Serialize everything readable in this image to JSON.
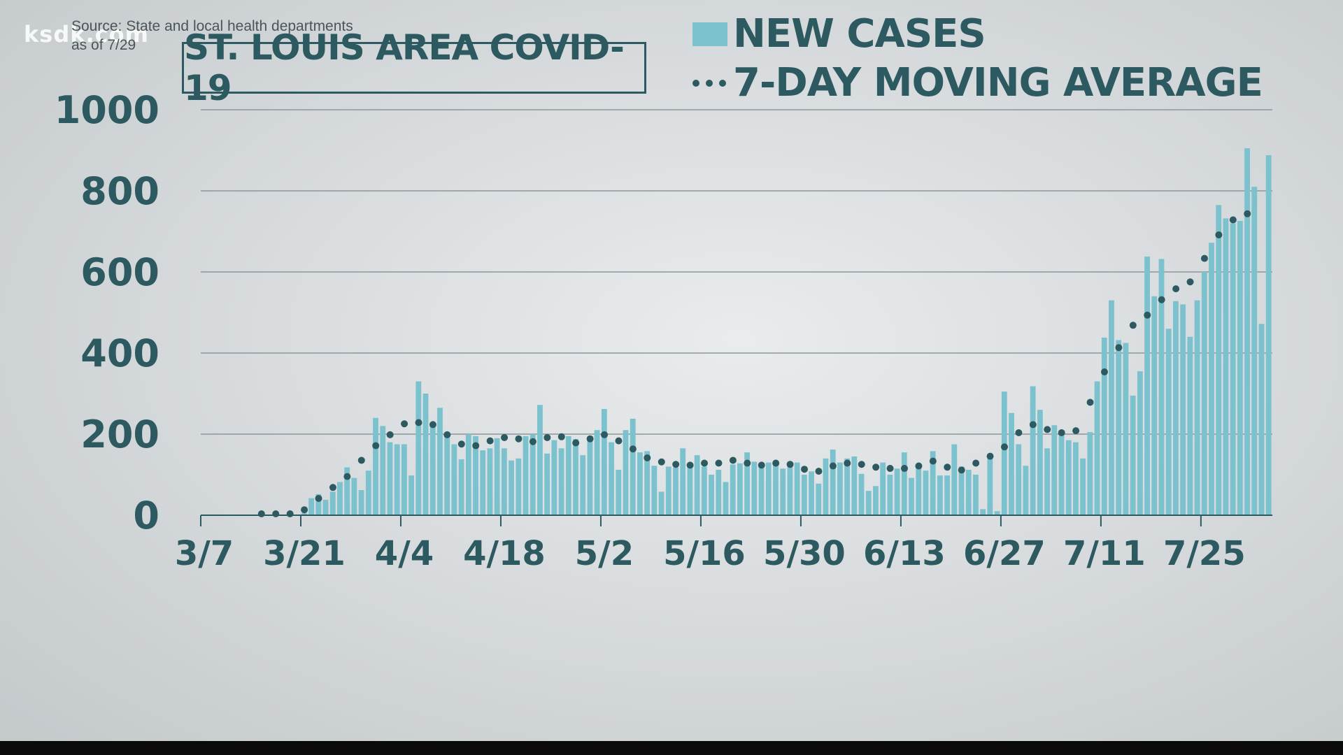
{
  "watermark": "ksdk.com",
  "source_line1": "Source: State and local health departments",
  "source_line2": "as of 7/29",
  "colors": {
    "bar": "#7cc2ce",
    "dot": "#2c5a60",
    "grid": "#8e9699",
    "text": "#2c5a60"
  },
  "chart_data": {
    "type": "bar",
    "title": "ST. LOUIS AREA COVID-19",
    "xlabel": "",
    "ylabel": "",
    "ylim": [
      0,
      1000
    ],
    "yticks": [
      0,
      200,
      400,
      600,
      800,
      1000
    ],
    "grid": true,
    "legend_placement": "top-right",
    "x_start": "3/7",
    "xticks": [
      "3/7",
      "3/21",
      "4/4",
      "4/18",
      "5/2",
      "5/16",
      "5/30",
      "6/13",
      "6/27",
      "7/11",
      "7/25"
    ],
    "series": [
      {
        "name": "NEW CASES",
        "type": "bar",
        "values": [
          0,
          0,
          0,
          0,
          0,
          0,
          0,
          0,
          0,
          0,
          0,
          0,
          0,
          0,
          5,
          42,
          52,
          38,
          58,
          82,
          118,
          92,
          62,
          110,
          240,
          220,
          180,
          175,
          175,
          98,
          330,
          300,
          225,
          265,
          205,
          175,
          138,
          200,
          195,
          160,
          165,
          190,
          165,
          135,
          140,
          195,
          200,
          272,
          152,
          185,
          165,
          195,
          188,
          148,
          190,
          210,
          262,
          180,
          112,
          210,
          238,
          155,
          158,
          122,
          58,
          120,
          118,
          165,
          125,
          148,
          120,
          100,
          112,
          82,
          125,
          128,
          155,
          132,
          120,
          130,
          128,
          115,
          132,
          130,
          100,
          108,
          78,
          140,
          162,
          130,
          140,
          145,
          102,
          60,
          72,
          130,
          100,
          115,
          155,
          92,
          118,
          110,
          158,
          98,
          98,
          175,
          120,
          112,
          100,
          15,
          148,
          10,
          305,
          252,
          175,
          122,
          318,
          260,
          165,
          222,
          198,
          185,
          180,
          140,
          205,
          330,
          438,
          530,
          432,
          425,
          295,
          355,
          638,
          540,
          632,
          460,
          528,
          520,
          440,
          530,
          600,
          672,
          765,
          732,
          720,
          726,
          905,
          810,
          472,
          888
        ]
      },
      {
        "name": "7-DAY MOVING AVERAGE",
        "type": "line",
        "style": "dotted",
        "values": [
          null,
          null,
          null,
          null,
          null,
          null,
          null,
          null,
          0,
          0,
          0,
          0,
          0,
          0,
          10,
          22,
          38,
          55,
          65,
          78,
          92,
          115,
          132,
          150,
          168,
          182,
          195,
          212,
          222,
          225,
          225,
          226,
          220,
          210,
          195,
          180,
          172,
          172,
          168,
          172,
          180,
          182,
          188,
          190,
          185,
          182,
          178,
          180,
          188,
          192,
          190,
          182,
          175,
          190,
          185,
          188,
          195,
          192,
          180,
          170,
          160,
          150,
          138,
          130,
          128,
          125,
          122,
          122,
          120,
          120,
          125,
          128,
          125,
          130,
          132,
          130,
          125,
          122,
          120,
          118,
          125,
          128,
          122,
          118,
          110,
          108,
          105,
          112,
          118,
          118,
          125,
          128,
          122,
          118,
          115,
          112,
          112,
          110,
          112,
          115,
          118,
          118,
          130,
          125,
          115,
          112,
          108,
          110,
          125,
          135,
          142,
          150,
          165,
          182,
          200,
          212,
          220,
          215,
          208,
          205,
          200,
          198,
          205,
          240,
          275,
          318,
          350,
          380,
          410,
          445,
          465,
          478,
          490,
          510,
          528,
          542,
          555,
          565,
          572,
          598,
          630,
          660,
          688,
          712,
          725,
          735,
          740,
          745
        ]
      }
    ]
  }
}
